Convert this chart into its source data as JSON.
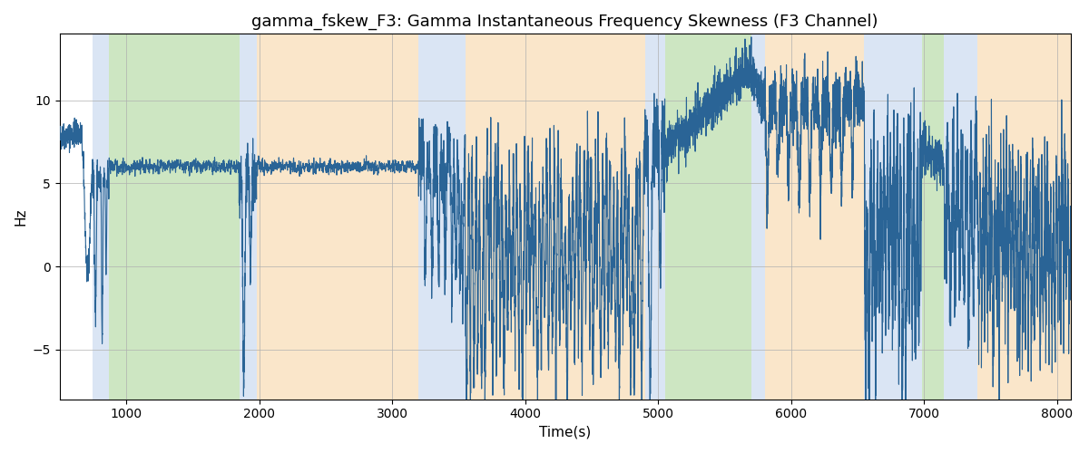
{
  "title": "gamma_fskew_F3: Gamma Instantaneous Frequency Skewness (F3 Channel)",
  "xlabel": "Time(s)",
  "ylabel": "Hz",
  "xlim": [
    500,
    8100
  ],
  "ylim": [
    -8,
    14
  ],
  "figsize": [
    12.0,
    5.0
  ],
  "dpi": 100,
  "line_color": "#2a6496",
  "line_width": 0.8,
  "background_color": "#ffffff",
  "grid_color": "#b0b0b0",
  "bands": [
    {
      "xmin": 750,
      "xmax": 870,
      "color": "#aec6e8",
      "alpha": 0.45
    },
    {
      "xmin": 870,
      "xmax": 1850,
      "color": "#90c878",
      "alpha": 0.45
    },
    {
      "xmin": 1850,
      "xmax": 1980,
      "color": "#aec6e8",
      "alpha": 0.45
    },
    {
      "xmin": 1980,
      "xmax": 3200,
      "color": "#f5c98a",
      "alpha": 0.45
    },
    {
      "xmin": 3200,
      "xmax": 3550,
      "color": "#aec6e8",
      "alpha": 0.45
    },
    {
      "xmin": 3550,
      "xmax": 4900,
      "color": "#f5c98a",
      "alpha": 0.45
    },
    {
      "xmin": 4900,
      "xmax": 5050,
      "color": "#aec6e8",
      "alpha": 0.45
    },
    {
      "xmin": 5050,
      "xmax": 5700,
      "color": "#90c878",
      "alpha": 0.45
    },
    {
      "xmin": 5700,
      "xmax": 5800,
      "color": "#aec6e8",
      "alpha": 0.45
    },
    {
      "xmin": 5800,
      "xmax": 6550,
      "color": "#f5c98a",
      "alpha": 0.45
    },
    {
      "xmin": 6550,
      "xmax": 6980,
      "color": "#aec6e8",
      "alpha": 0.45
    },
    {
      "xmin": 6980,
      "xmax": 7150,
      "color": "#90c878",
      "alpha": 0.45
    },
    {
      "xmin": 7150,
      "xmax": 7400,
      "color": "#aec6e8",
      "alpha": 0.45
    },
    {
      "xmin": 7400,
      "xmax": 8100,
      "color": "#f5c98a",
      "alpha": 0.45
    }
  ],
  "yticks": [
    -5,
    0,
    5,
    10
  ],
  "xticks": [
    1000,
    2000,
    3000,
    4000,
    5000,
    6000,
    7000,
    8000
  ]
}
